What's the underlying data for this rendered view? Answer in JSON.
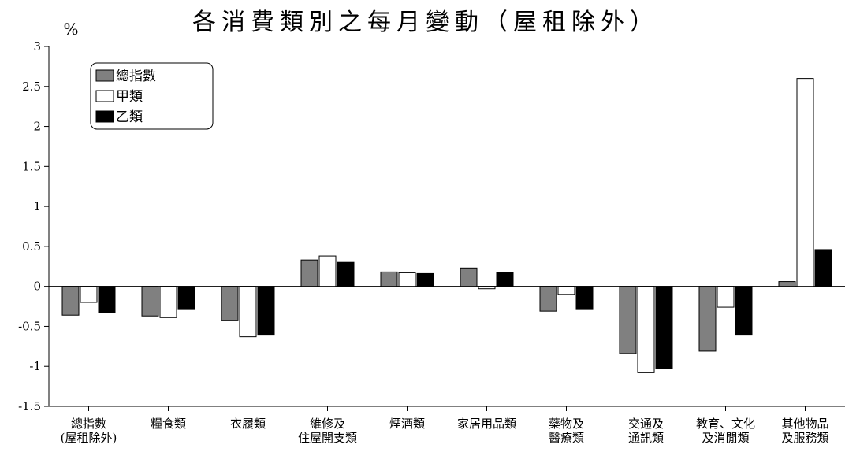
{
  "chart_data": {
    "type": "bar",
    "title": "各消費類別之每月變動（屋租除外）",
    "ylabel": "%",
    "xlabel": "",
    "ylim": [
      -1.5,
      3
    ],
    "yticks": [
      "-1.5",
      "-1",
      "-0.5",
      "0",
      "0.5",
      "1",
      "1.5",
      "2",
      "2.5",
      "3"
    ],
    "grid": false,
    "legend_position": "top-left",
    "categories": [
      [
        "總指數",
        "(屋租除外)"
      ],
      [
        "糧食類"
      ],
      [
        "衣履類"
      ],
      [
        "維修及",
        "住屋開支類"
      ],
      [
        "煙酒類"
      ],
      [
        "家居用品類"
      ],
      [
        "藥物及",
        "醫療類"
      ],
      [
        "交通及",
        "通訊類"
      ],
      [
        "教育、文化",
        "及消閒類"
      ],
      [
        "其他物品",
        "及服務類"
      ]
    ],
    "series": [
      {
        "name": "總指數",
        "color": "#808080",
        "values": [
          -0.36,
          -0.37,
          -0.43,
          0.33,
          0.18,
          0.23,
          -0.31,
          -0.84,
          -0.81,
          0.06
        ]
      },
      {
        "name": "甲類",
        "color": "#ffffff",
        "values": [
          -0.2,
          -0.39,
          -0.63,
          0.38,
          0.17,
          -0.03,
          -0.1,
          -1.08,
          -0.26,
          2.6
        ]
      },
      {
        "name": "乙類",
        "color": "#000000",
        "values": [
          -0.33,
          -0.29,
          -0.61,
          0.3,
          0.16,
          0.17,
          -0.29,
          -1.03,
          -0.61,
          0.46
        ]
      }
    ]
  }
}
